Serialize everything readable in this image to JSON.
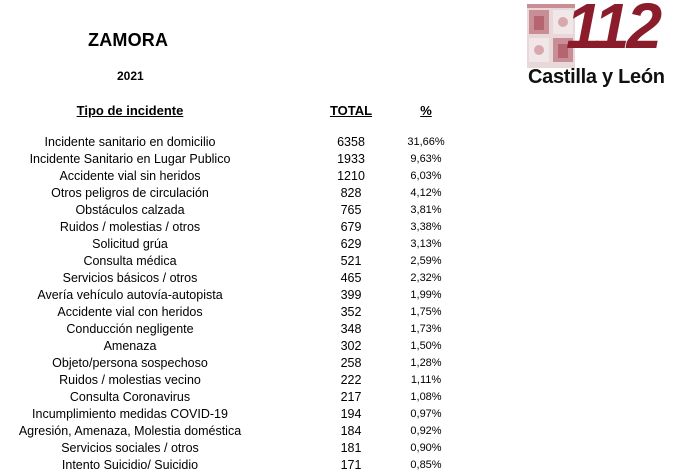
{
  "header": {
    "province": "ZAMORA",
    "year": "2021"
  },
  "logo": {
    "number": "112",
    "region": "Castilla y León",
    "shield_icon": "castilla-leon-coat-of-arms-icon",
    "number_color": "#8a1c2b"
  },
  "table": {
    "columns": [
      "Tipo de incidente",
      "TOTAL",
      "%"
    ],
    "rows": [
      {
        "type": "Incidente sanitario en domicilio",
        "total": "6358",
        "pct": "31,66%"
      },
      {
        "type": "Incidente Sanitario en Lugar Publico",
        "total": "1933",
        "pct": "9,63%"
      },
      {
        "type": "Accidente vial sin heridos",
        "total": "1210",
        "pct": "6,03%"
      },
      {
        "type": "Otros peligros de circulación",
        "total": "828",
        "pct": "4,12%"
      },
      {
        "type": "Obstáculos calzada",
        "total": "765",
        "pct": "3,81%"
      },
      {
        "type": "Ruidos / molestias / otros",
        "total": "679",
        "pct": "3,38%"
      },
      {
        "type": "Solicitud grúa",
        "total": "629",
        "pct": "3,13%"
      },
      {
        "type": "Consulta médica",
        "total": "521",
        "pct": "2,59%"
      },
      {
        "type": "Servicios básicos / otros",
        "total": "465",
        "pct": "2,32%"
      },
      {
        "type": "Avería vehículo autovía-autopista",
        "total": "399",
        "pct": "1,99%"
      },
      {
        "type": "Accidente vial con heridos",
        "total": "352",
        "pct": "1,75%"
      },
      {
        "type": "Conducción negligente",
        "total": "348",
        "pct": "1,73%"
      },
      {
        "type": "Amenaza",
        "total": "302",
        "pct": "1,50%"
      },
      {
        "type": "Objeto/persona sospechoso",
        "total": "258",
        "pct": "1,28%"
      },
      {
        "type": "Ruidos / molestias vecino",
        "total": "222",
        "pct": "1,11%"
      },
      {
        "type": "Consulta Coronavirus",
        "total": "217",
        "pct": "1,08%"
      },
      {
        "type": "Incumplimiento medidas COVID-19",
        "total": "194",
        "pct": "0,97%"
      },
      {
        "type": "Agresión, Amenaza, Molestia doméstica",
        "total": "184",
        "pct": "0,92%"
      },
      {
        "type": "Servicios  sociales / otros",
        "total": "181",
        "pct": "0,90%"
      },
      {
        "type": "Intento Suicidio/ Suicidio",
        "total": "171",
        "pct": "0,85%"
      }
    ]
  }
}
